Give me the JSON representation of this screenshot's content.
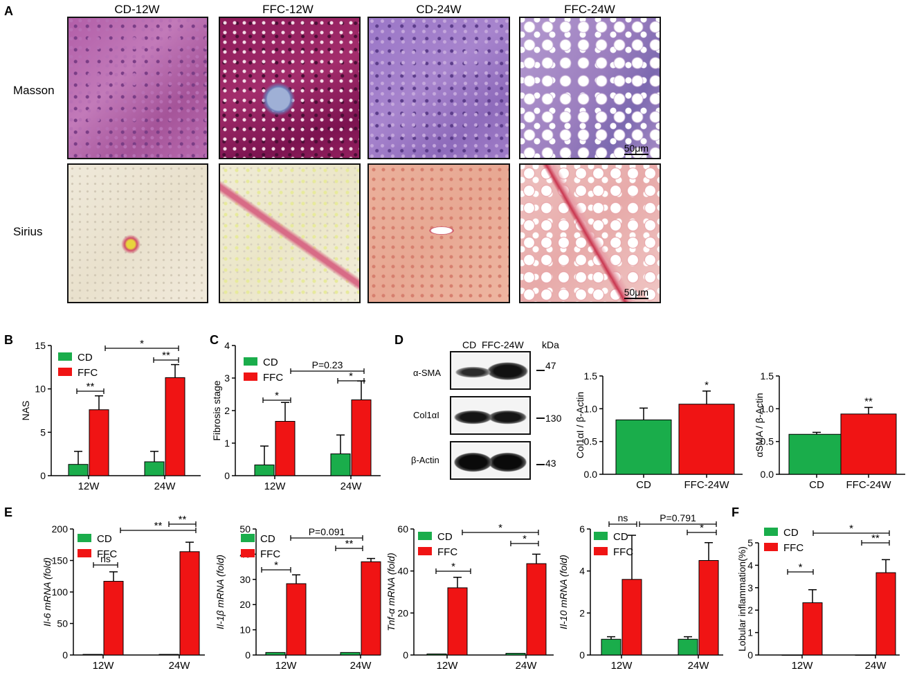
{
  "panel_letters": [
    "A",
    "B",
    "C",
    "D",
    "E",
    "F"
  ],
  "panelA": {
    "columns": [
      "CD-12W",
      "FFC-12W",
      "CD-24W",
      "FFC-24W"
    ],
    "rows": [
      "Masson",
      "Sirius"
    ],
    "scale_bar": "50μm"
  },
  "western": {
    "header_lanes": "CD  FFC-24W",
    "kda_label": "kDa",
    "bands": [
      {
        "name": "α-SMA",
        "kda": "47"
      },
      {
        "name": "Col1αI",
        "kda": "130"
      },
      {
        "name": "β-Actin",
        "kda": "43"
      }
    ]
  },
  "colors": {
    "CD": "#1aad4b",
    "FFC": "#f01414"
  },
  "chart_data": [
    {
      "id": "B",
      "type": "bar",
      "categories": [
        "12W",
        "24W"
      ],
      "series": [
        {
          "name": "CD",
          "values": [
            1.3,
            1.6
          ],
          "errors": [
            1.5,
            1.2
          ]
        },
        {
          "name": "FFC",
          "values": [
            7.6,
            11.3
          ],
          "errors": [
            1.6,
            1.5
          ]
        }
      ],
      "ylabel": "NAS",
      "ylim": [
        0,
        15
      ],
      "yticks": [
        0,
        5,
        10,
        15
      ],
      "annotations": [
        {
          "text": "**",
          "scope": "12W"
        },
        {
          "text": "**",
          "scope": "24W"
        },
        {
          "text": "*",
          "scope": "FFC 12W vs FFC 24W"
        }
      ]
    },
    {
      "id": "C",
      "type": "bar",
      "categories": [
        "12W",
        "24W"
      ],
      "series": [
        {
          "name": "CD",
          "values": [
            0.33,
            0.67
          ],
          "errors": [
            0.58,
            0.58
          ]
        },
        {
          "name": "FFC",
          "values": [
            1.67,
            2.33
          ],
          "errors": [
            0.58,
            0.58
          ]
        }
      ],
      "ylabel": "Fibrosis stage",
      "ylim": [
        0,
        4
      ],
      "yticks": [
        0,
        1,
        2,
        3,
        4
      ],
      "annotations": [
        {
          "text": "*",
          "scope": "12W"
        },
        {
          "text": "*",
          "scope": "24W"
        },
        {
          "text": "P=0.23",
          "scope": "FFC 12W vs FFC 24W"
        }
      ]
    },
    {
      "id": "D1",
      "type": "bar",
      "categories": [
        "CD",
        "FFC-24W"
      ],
      "values": [
        0.83,
        1.07
      ],
      "errors": [
        0.18,
        0.2
      ],
      "ylabel": "Col1αI / β-Actin",
      "ylim": [
        0,
        1.5
      ],
      "yticks": [
        "0.0",
        "0.5",
        "1.0",
        "1.5"
      ],
      "annotations": [
        {
          "text": "*",
          "scope": "FFC-24W"
        }
      ]
    },
    {
      "id": "D2",
      "type": "bar",
      "categories": [
        "CD",
        "FFC-24W"
      ],
      "values": [
        0.61,
        0.92
      ],
      "errors": [
        0.03,
        0.1
      ],
      "ylabel": "αSMA / β-Actin",
      "ylim": [
        0,
        1.5
      ],
      "yticks": [
        "0.0",
        "0.5",
        "1.0",
        "1.5"
      ],
      "annotations": [
        {
          "text": "**",
          "scope": "FFC-24W"
        }
      ]
    },
    {
      "id": "E1",
      "type": "bar",
      "categories": [
        "12W",
        "24W"
      ],
      "series": [
        {
          "name": "CD",
          "values": [
            1,
            1
          ],
          "errors": [
            0,
            0
          ]
        },
        {
          "name": "FFC",
          "values": [
            117,
            164
          ],
          "errors": [
            15,
            15
          ]
        }
      ],
      "ylabel": "Il-6 mRNA (fold)",
      "ylim": [
        0,
        200
      ],
      "yticks": [
        0,
        50,
        100,
        150,
        200
      ],
      "annotations": [
        {
          "text": "ns",
          "scope": "12W"
        },
        {
          "text": "**",
          "scope": "24W"
        },
        {
          "text": "**",
          "scope": "FFC 12W vs FFC 24W"
        }
      ]
    },
    {
      "id": "E2",
      "type": "bar",
      "categories": [
        "12W",
        "24W"
      ],
      "series": [
        {
          "name": "CD",
          "values": [
            1,
            1
          ],
          "errors": [
            0,
            0
          ]
        },
        {
          "name": "FFC",
          "values": [
            28.3,
            37
          ],
          "errors": [
            3.5,
            1.3
          ]
        }
      ],
      "ylabel": "Il-1β mRNA (fold)",
      "ylim": [
        0,
        50
      ],
      "yticks": [
        0,
        10,
        20,
        30,
        40,
        50
      ],
      "annotations": [
        {
          "text": "*",
          "scope": "12W"
        },
        {
          "text": "**",
          "scope": "24W"
        },
        {
          "text": "P=0.091",
          "scope": "FFC 12W vs FFC 24W"
        }
      ]
    },
    {
      "id": "E3",
      "type": "bar",
      "categories": [
        "12W",
        "24W"
      ],
      "series": [
        {
          "name": "CD",
          "values": [
            0.5,
            0.8
          ],
          "errors": [
            0,
            0
          ]
        },
        {
          "name": "FFC",
          "values": [
            32,
            43.5
          ],
          "errors": [
            5,
            4.5
          ]
        }
      ],
      "ylabel": "Tnf-α mRNA (fold)",
      "ylim": [
        0,
        60
      ],
      "yticks": [
        0,
        20,
        40,
        60
      ],
      "annotations": [
        {
          "text": "*",
          "scope": "12W"
        },
        {
          "text": "*",
          "scope": "24W"
        },
        {
          "text": "*",
          "scope": "FFC 12W vs FFC 24W"
        }
      ]
    },
    {
      "id": "E4",
      "type": "bar",
      "categories": [
        "12W",
        "24W"
      ],
      "series": [
        {
          "name": "CD",
          "values": [
            0.75,
            0.75
          ],
          "errors": [
            0.12,
            0.12
          ]
        },
        {
          "name": "FFC",
          "values": [
            3.6,
            4.5
          ],
          "errors": [
            2.1,
            0.85
          ]
        }
      ],
      "ylabel": "Il-10 mRNA (fold)",
      "ylim": [
        0,
        6
      ],
      "yticks": [
        0,
        2,
        4,
        6
      ],
      "annotations": [
        {
          "text": "ns",
          "scope": "12W"
        },
        {
          "text": "*",
          "scope": "24W"
        },
        {
          "text": "P=0.791",
          "scope": "FFC 12W vs FFC 24W"
        }
      ]
    },
    {
      "id": "F",
      "type": "bar",
      "categories": [
        "12W",
        "24W"
      ],
      "series": [
        {
          "name": "CD",
          "values": [
            0,
            0
          ],
          "errors": [
            0,
            0
          ]
        },
        {
          "name": "FFC",
          "values": [
            2.33,
            3.67
          ],
          "errors": [
            0.58,
            0.58
          ]
        }
      ],
      "ylabel": "Lobular inflammation(%)",
      "ylim": [
        0,
        5
      ],
      "yticks": [
        0,
        1,
        2,
        3,
        4,
        5
      ],
      "annotations": [
        {
          "text": "*",
          "scope": "12W"
        },
        {
          "text": "**",
          "scope": "24W"
        },
        {
          "text": "*",
          "scope": "FFC 12W vs FFC 24W"
        }
      ]
    }
  ]
}
